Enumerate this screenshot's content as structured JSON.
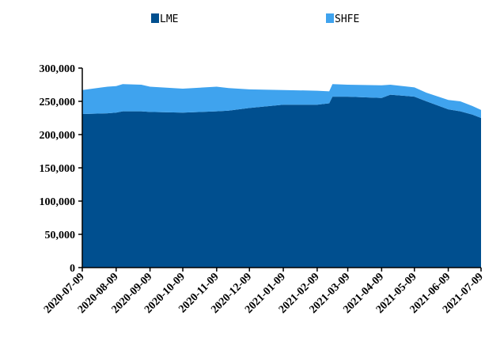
{
  "chart_data": {
    "type": "area",
    "stacked": true,
    "title": "",
    "xlabel": "",
    "ylabel": "",
    "ylim": [
      0,
      300000
    ],
    "y_ticks": [
      0,
      50000,
      100000,
      150000,
      200000,
      250000,
      300000
    ],
    "y_tick_labels": [
      "0",
      "50,000",
      "100,000",
      "150,000",
      "200,000",
      "250,000",
      "300,000"
    ],
    "x_tick_labels": [
      "2020-07-09",
      "2020-08-09",
      "2020-09-09",
      "2020-10-09",
      "2020-11-09",
      "2020-12-09",
      "2021-01-09",
      "2021-02-09",
      "2021-03-09",
      "2021-04-09",
      "2021-05-09",
      "2021-06-09",
      "2021-07-09"
    ],
    "xlim": [
      "2020-07-09",
      "2021-07-09"
    ],
    "grid": false,
    "legend_position": "top",
    "series": [
      {
        "name": "LME",
        "color": "#004f8f",
        "points": [
          [
            "2020-07-09",
            231000
          ],
          [
            "2020-08-01",
            232000
          ],
          [
            "2020-08-09",
            233000
          ],
          [
            "2020-08-15",
            235000
          ],
          [
            "2020-09-01",
            235000
          ],
          [
            "2020-09-09",
            234000
          ],
          [
            "2020-10-09",
            233000
          ],
          [
            "2020-11-09",
            235000
          ],
          [
            "2020-11-20",
            236000
          ],
          [
            "2020-12-09",
            240000
          ],
          [
            "2021-01-09",
            245000
          ],
          [
            "2021-02-09",
            245000
          ],
          [
            "2021-02-20",
            247000
          ],
          [
            "2021-02-23",
            257000
          ],
          [
            "2021-03-09",
            257000
          ],
          [
            "2021-04-09",
            255000
          ],
          [
            "2021-04-17",
            260000
          ],
          [
            "2021-05-09",
            257000
          ],
          [
            "2021-05-20",
            250000
          ],
          [
            "2021-06-09",
            238000
          ],
          [
            "2021-06-20",
            235000
          ],
          [
            "2021-07-01",
            230000
          ],
          [
            "2021-07-09",
            225000
          ]
        ]
      },
      {
        "name": "SHFE",
        "color": "#3fa3ee",
        "points": [
          [
            "2020-07-09",
            36000
          ],
          [
            "2020-08-01",
            40000
          ],
          [
            "2020-08-09",
            40000
          ],
          [
            "2020-08-15",
            41000
          ],
          [
            "2020-09-01",
            40000
          ],
          [
            "2020-09-09",
            38000
          ],
          [
            "2020-10-09",
            36000
          ],
          [
            "2020-11-09",
            37000
          ],
          [
            "2020-11-20",
            34000
          ],
          [
            "2020-12-09",
            28000
          ],
          [
            "2021-01-09",
            22000
          ],
          [
            "2021-02-09",
            21000
          ],
          [
            "2021-02-20",
            18000
          ],
          [
            "2021-02-23",
            19000
          ],
          [
            "2021-03-09",
            18000
          ],
          [
            "2021-04-09",
            19000
          ],
          [
            "2021-04-17",
            15000
          ],
          [
            "2021-05-09",
            14000
          ],
          [
            "2021-05-20",
            13000
          ],
          [
            "2021-06-09",
            14000
          ],
          [
            "2021-06-20",
            15000
          ],
          [
            "2021-07-01",
            13000
          ],
          [
            "2021-07-09",
            12000
          ]
        ]
      }
    ]
  }
}
